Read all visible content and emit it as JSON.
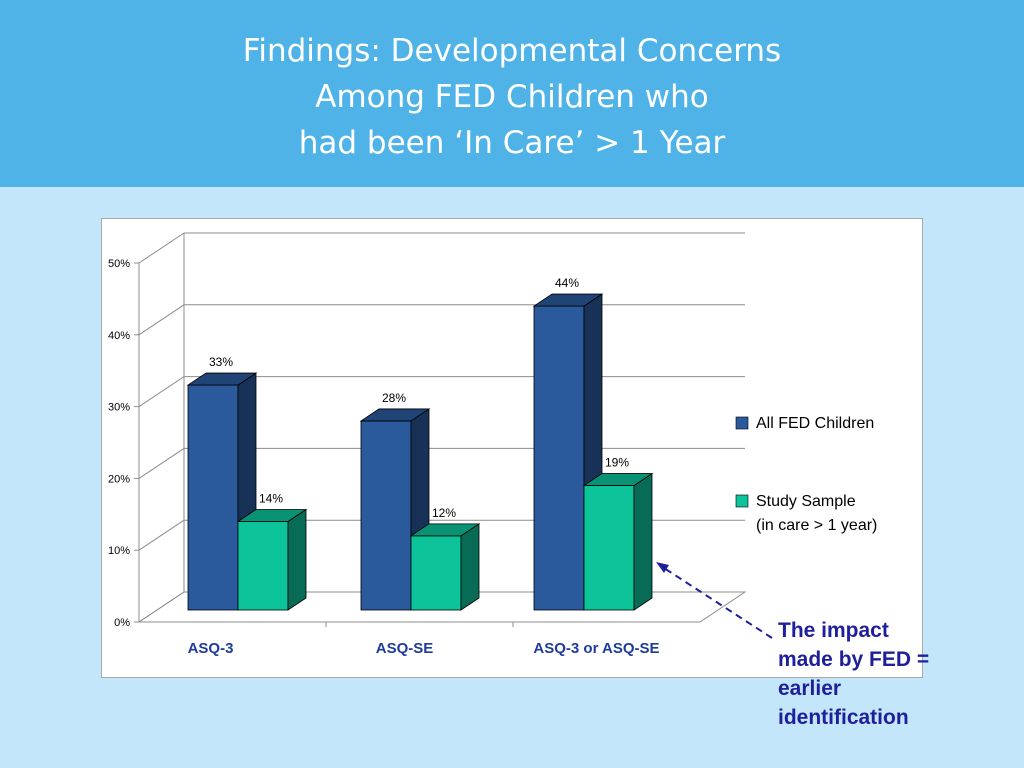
{
  "slide": {
    "title_lines": [
      "Findings: Developmental Concerns",
      "Among FED Children who",
      "had been ‘In Care’ > 1 Year"
    ],
    "callout_lines": [
      "The impact",
      "made by FED =",
      "earlier",
      "identification"
    ],
    "colors": {
      "header_bg": "#4fb3e8",
      "page_bg": "#c3e6fa",
      "callout_text": "#1f1f9c",
      "arrow": "#1f1f9c"
    }
  },
  "chart_data": {
    "type": "bar",
    "style": "3d-clustered",
    "title": "",
    "xlabel": "",
    "ylabel": "",
    "categories": [
      "ASQ-3",
      "ASQ-SE",
      "ASQ-3 or ASQ-SE"
    ],
    "series": [
      {
        "name": "All FED Children",
        "values": [
          33,
          28,
          44
        ],
        "color": "#2a5a9c",
        "label_values": [
          "33%",
          "28%",
          "44%"
        ]
      },
      {
        "name": "Study Sample",
        "name_line2": "(in care > 1 year)",
        "values": [
          14,
          12,
          19
        ],
        "color": "#0cc39a",
        "label_values": [
          "14%",
          "12%",
          "19%"
        ]
      }
    ],
    "ylim": [
      0,
      50
    ],
    "yticks": [
      "0%",
      "10%",
      "20%",
      "30%",
      "40%",
      "50%"
    ],
    "grid": true,
    "legend_position": "right"
  }
}
